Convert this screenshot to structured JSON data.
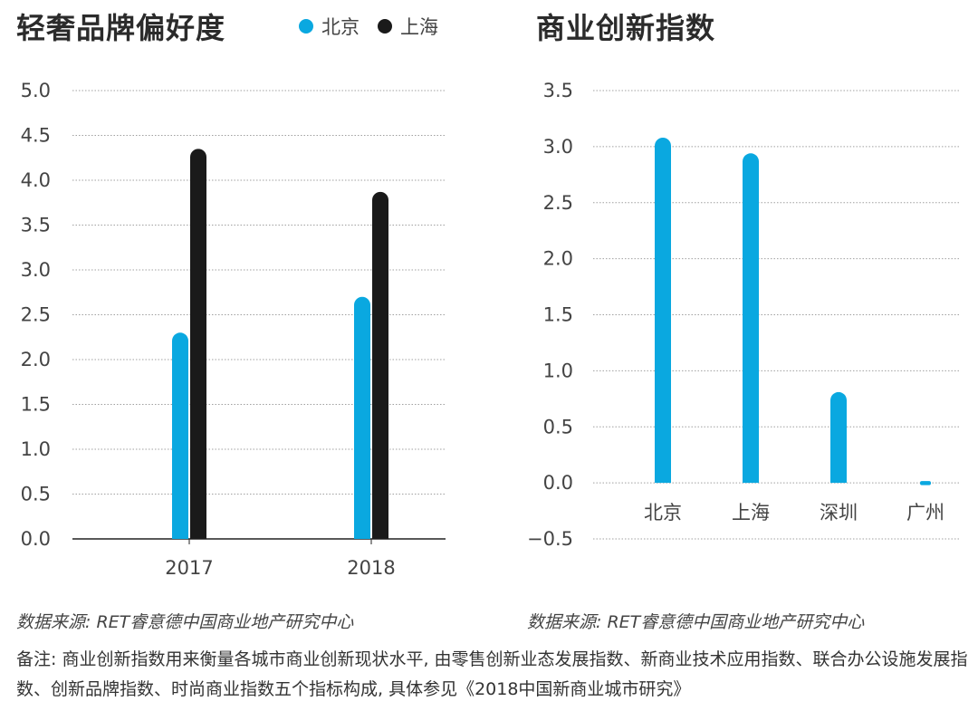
{
  "chart_data": [
    {
      "type": "bar",
      "title": "轻奢品牌偏好度",
      "categories": [
        "2017",
        "2018"
      ],
      "series": [
        {
          "name": "北京",
          "values": [
            2.3,
            2.7
          ],
          "color": "#0aa8e0"
        },
        {
          "name": "上海",
          "values": [
            4.35,
            3.87
          ],
          "color": "#1a1a1a"
        }
      ],
      "ylim": [
        0,
        5.0
      ],
      "yticks": [
        "0.0",
        "0.5",
        "1.0",
        "1.5",
        "2.0",
        "2.5",
        "3.0",
        "3.5",
        "4.0",
        "4.5",
        "5.0"
      ],
      "grid": true,
      "legend": "top"
    },
    {
      "type": "bar",
      "title": "商业创新指数",
      "categories": [
        "北京",
        "上海",
        "深圳",
        "广州"
      ],
      "series": [
        {
          "name": "商业创新指数",
          "values": [
            3.08,
            2.94,
            0.81,
            -0.02
          ],
          "color": "#0aa8e0"
        }
      ],
      "ylim": [
        -0.5,
        3.5
      ],
      "yticks": [
        "−0.5",
        "0.0",
        "0.5",
        "1.0",
        "1.5",
        "2.0",
        "2.5",
        "3.0",
        "3.5"
      ],
      "grid": true
    }
  ],
  "sources": {
    "left": "数据来源: RET睿意德中国商业地产研究中心",
    "right": "数据来源: RET睿意德中国商业地产研究中心"
  },
  "note": "备注: 商业创新指数用来衡量各城市商业创新现状水平, 由零售创新业态发展指数、新商业技术应用指数、联合办公设施发展指数、创新品牌指数、时尚商业指数五个指标构成, 具体参见《2018中国新商业城市研究》"
}
